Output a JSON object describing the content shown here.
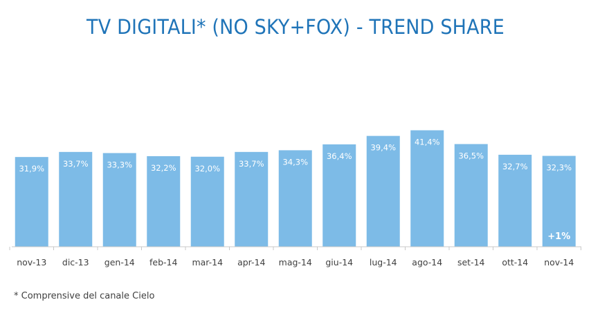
{
  "chart_data": {
    "type": "bar",
    "title": "TV DIGITALI* (NO SKY+FOX) - TREND SHARE",
    "categories": [
      "nov-13",
      "dic-13",
      "gen-14",
      "feb-14",
      "mar-14",
      "apr-14",
      "mag-14",
      "giu-14",
      "lug-14",
      "ago-14",
      "set-14",
      "ott-14",
      "nov-14"
    ],
    "series": [
      {
        "values": [
          31.9,
          33.7,
          33.3,
          32.2,
          32.0,
          33.7,
          34.3,
          36.4,
          39.4,
          41.4,
          36.5,
          32.7,
          32.3
        ],
        "labels": [
          "31,9%",
          "33,7%",
          "33,3%",
          "32,2%",
          "32,0%",
          "33,7%",
          "34,3%",
          "36,4%",
          "39,4%",
          "41,4%",
          "36,5%",
          "32,7%",
          "32,3%"
        ]
      }
    ],
    "annotations": [
      {
        "category": "nov-14",
        "text": "+1%"
      }
    ],
    "bar_color": "#7dbbe7",
    "grid": false,
    "legend": "none"
  },
  "footnote": "* Comprensive del canale Cielo"
}
